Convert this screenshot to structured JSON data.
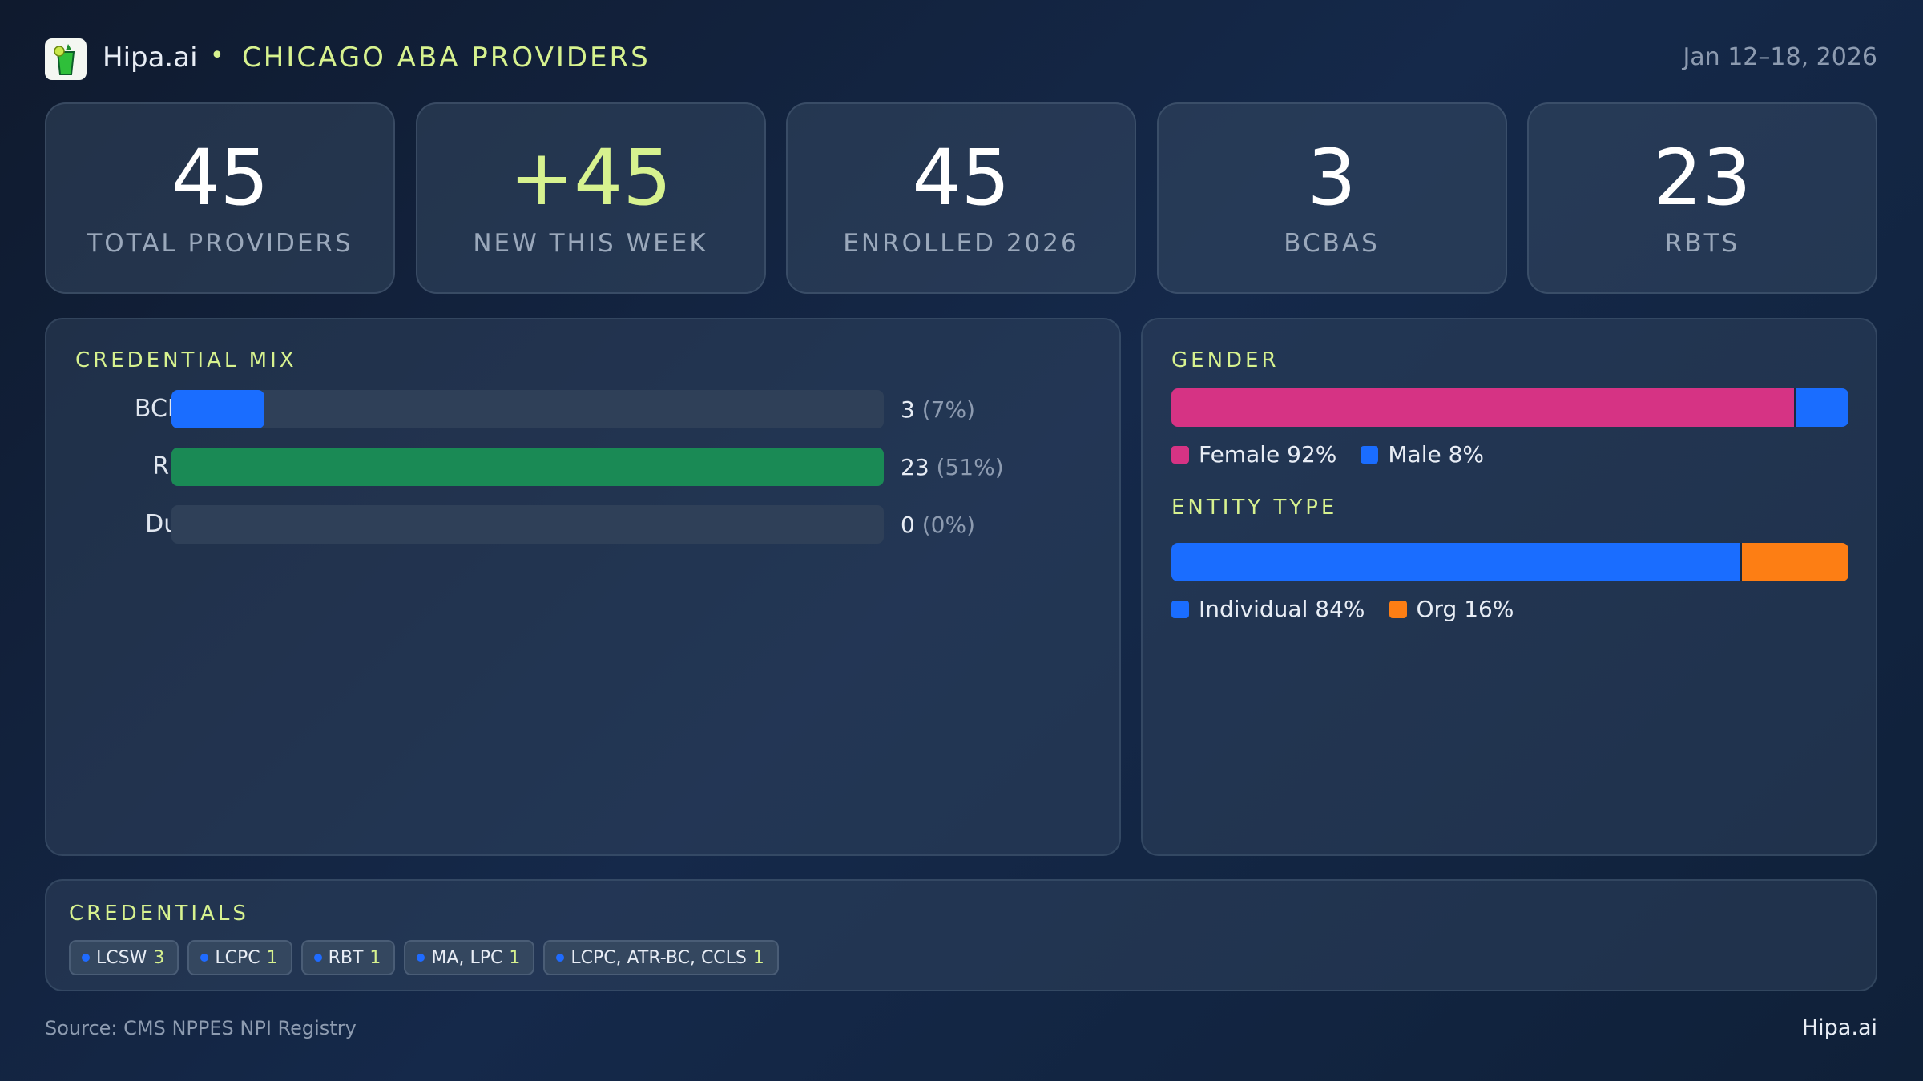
{
  "header": {
    "brand": "Hipa.ai",
    "separator": "•",
    "title": "CHICAGO ABA PROVIDERS",
    "date_range": "Jan 12–18, 2026",
    "logo_icon": "mojito-glass-icon"
  },
  "kpis": [
    {
      "value": "45",
      "label": "TOTAL PROVIDERS"
    },
    {
      "value": "+45",
      "label": "NEW THIS WEEK"
    },
    {
      "value": "45",
      "label": "ENROLLED 2026"
    },
    {
      "value": "3",
      "label": "BCBAS"
    },
    {
      "value": "23",
      "label": "RBTS"
    }
  ],
  "credential_mix": {
    "title": "CREDENTIAL MIX",
    "rows": [
      {
        "label": "BCBA",
        "count": "3",
        "pct": "(7%)",
        "fraction": 0.13,
        "color": "#1a6dff"
      },
      {
        "label": "RBT",
        "count": "23",
        "pct": "(51%)",
        "fraction": 1.0,
        "color": "#1a8a55"
      },
      {
        "label": "Dual",
        "count": "0",
        "pct": "(0%)",
        "fraction": 0,
        "color": "#1a6dff"
      }
    ]
  },
  "gender": {
    "title": "GENDER",
    "segments": [
      {
        "label": "Female 92%",
        "percent": 92,
        "color": "#d63384"
      },
      {
        "label": "Male 8%",
        "percent": 8,
        "color": "#1a6dff"
      }
    ]
  },
  "entity_type": {
    "title": "ENTITY TYPE",
    "segments": [
      {
        "label": "Individual 84%",
        "percent": 84,
        "color": "#1a6dff"
      },
      {
        "label": "Org 16%",
        "percent": 16,
        "color": "#fd7e14"
      }
    ]
  },
  "credentials": {
    "title": "CREDENTIALS",
    "chips": [
      {
        "name": "LCSW",
        "count": "3"
      },
      {
        "name": "LCPC",
        "count": "1"
      },
      {
        "name": "RBT",
        "count": "1"
      },
      {
        "name": "MA, LPC",
        "count": "1"
      },
      {
        "name": "LCPC, ATR-BC, CCLS",
        "count": "1"
      }
    ]
  },
  "footer": {
    "source": "Source: CMS NPPES NPI Registry",
    "brand": "Hipa.ai"
  },
  "colors": {
    "accent": "#d7f28f"
  }
}
